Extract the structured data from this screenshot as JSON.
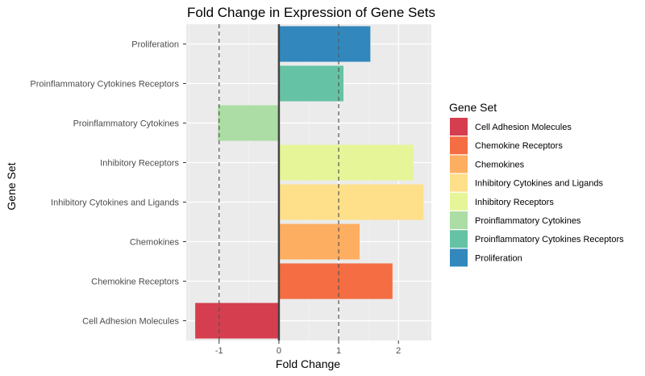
{
  "chart_data": {
    "type": "bar",
    "orientation": "horizontal",
    "title": "Fold Change in Expression of Gene Sets",
    "xlabel": "Fold Change",
    "ylabel": "Gene Set",
    "xlim": [
      -1.55,
      2.55
    ],
    "xticks": [
      -1,
      0,
      1,
      2
    ],
    "reference_lines": [
      {
        "x": -1,
        "style": "dashed"
      },
      {
        "x": 1,
        "style": "dashed"
      },
      {
        "x": 0,
        "style": "solid"
      }
    ],
    "categories": [
      "Cell Adhesion Molecules",
      "Chemokine Receptors",
      "Chemokines",
      "Inhibitory Cytokines and Ligands",
      "Inhibitory Receptors",
      "Proinflammatory Cytokines",
      "Proinflammatory Cytokines Receptors",
      "Proliferation"
    ],
    "values": [
      -1.4,
      1.9,
      1.35,
      2.42,
      2.25,
      -1.02,
      1.08,
      1.53
    ],
    "colors": [
      "#d53e4f",
      "#f46d43",
      "#fdae61",
      "#fee08b",
      "#e6f598",
      "#abdda4",
      "#66c2a5",
      "#3288bd"
    ],
    "grid": true,
    "legend": {
      "title": "Gene Set",
      "position": "right",
      "entries": [
        "Cell Adhesion Molecules",
        "Chemokine Receptors",
        "Chemokines",
        "Inhibitory Cytokines and Ligands",
        "Inhibitory Receptors",
        "Proinflammatory Cytokines",
        "Proinflammatory Cytokines Receptors",
        "Proliferation"
      ]
    }
  }
}
